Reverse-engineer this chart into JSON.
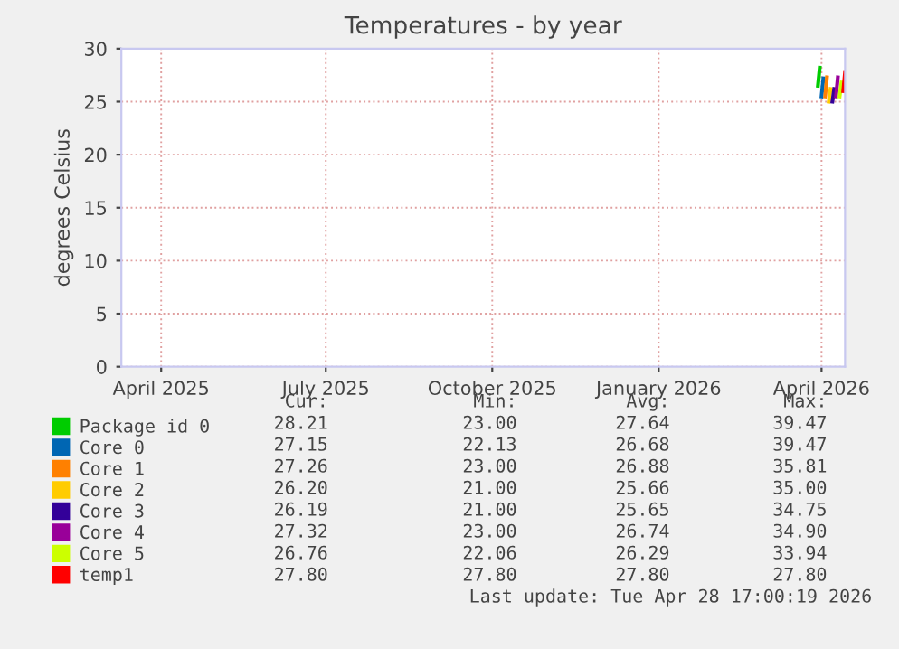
{
  "chart_data": {
    "type": "line",
    "title": "Temperatures - by year",
    "ylabel": "degrees Celsius",
    "xlim": [
      "2025-03-24",
      "2026-04-28"
    ],
    "xticks": [
      {
        "value": "2025-04-15",
        "label": "April 2025"
      },
      {
        "value": "2025-07-15",
        "label": "July 2025"
      },
      {
        "value": "2025-10-15",
        "label": "October 2025"
      },
      {
        "value": "2026-01-15",
        "label": "January 2026"
      },
      {
        "value": "2026-04-15",
        "label": "April 2026"
      }
    ],
    "ylim": [
      0,
      30
    ],
    "yticks": [
      0,
      5,
      10,
      15,
      20,
      25,
      30
    ],
    "grid": true,
    "legend": "bottom",
    "series": [
      {
        "name": "Package id 0",
        "color": "#00cc00",
        "x": [
          "2026-04-13",
          "2026-04-14"
        ],
        "values": [
          26.5,
          28.2
        ]
      },
      {
        "name": "Core 0",
        "color": "#0066b3",
        "x": [
          "2026-04-15",
          "2026-04-16"
        ],
        "values": [
          25.5,
          27.2
        ]
      },
      {
        "name": "Core 1",
        "color": "#ff8000",
        "x": [
          "2026-04-17",
          "2026-04-18"
        ],
        "values": [
          25.5,
          27.3
        ]
      },
      {
        "name": "Core 2",
        "color": "#ffcc00",
        "x": [
          "2026-04-19",
          "2026-04-20"
        ],
        "values": [
          25.0,
          26.2
        ]
      },
      {
        "name": "Core 3",
        "color": "#330099",
        "x": [
          "2026-04-21",
          "2026-04-22"
        ],
        "values": [
          25.0,
          26.2
        ]
      },
      {
        "name": "Core 4",
        "color": "#990099",
        "x": [
          "2026-04-23",
          "2026-04-24"
        ],
        "values": [
          25.5,
          27.3
        ]
      },
      {
        "name": "Core 5",
        "color": "#ccff00",
        "x": [
          "2026-04-25",
          "2026-04-26"
        ],
        "values": [
          25.5,
          26.8
        ]
      },
      {
        "name": "temp1",
        "color": "#ff0000",
        "x": [
          "2026-04-27",
          "2026-04-28"
        ],
        "values": [
          26.0,
          27.8
        ]
      }
    ],
    "annotations": [
      "Cur:",
      "Min:",
      "Avg:",
      "Max:",
      "28.21",
      "23.00",
      "27.64",
      "39.47",
      "27.15",
      "22.13",
      "26.68",
      "39.47",
      "27.26",
      "23.00",
      "26.88",
      "35.81",
      "26.20",
      "21.00",
      "25.66",
      "35.00",
      "26.19",
      "21.00",
      "25.65",
      "34.75",
      "27.32",
      "23.00",
      "26.74",
      "34.90",
      "26.76",
      "22.06",
      "26.29",
      "33.94",
      "27.80",
      "27.80",
      "27.80",
      "27.80",
      "Last update: Tue Apr 28 17:00:19 2026"
    ]
  }
}
